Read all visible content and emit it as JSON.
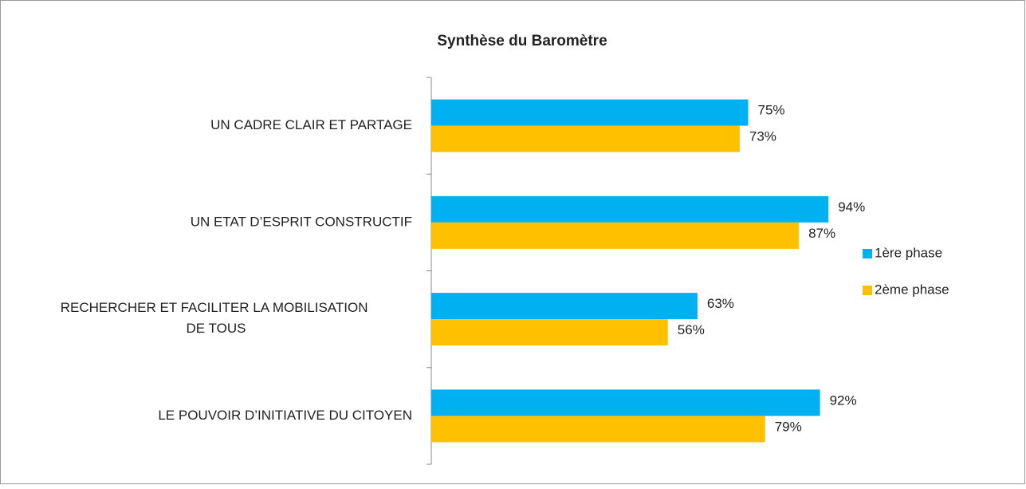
{
  "chart_data": {
    "type": "bar",
    "orientation": "horizontal",
    "title": "Synthèse du Baromètre",
    "categories": [
      "UN CADRE CLAIR ET PARTAGE",
      "UN ETAT D’ESPRIT CONSTRUCTIF",
      "RECHERCHER ET FACILITER LA MOBILISATION DE TOUS",
      "LE POUVOIR D’INITIATIVE DU CITOYEN"
    ],
    "series": [
      {
        "name": "1ère phase",
        "color": "#00b0f0",
        "values": [
          75,
          94,
          63,
          92
        ],
        "value_labels": [
          "75%",
          "94%",
          "63%",
          "92%"
        ]
      },
      {
        "name": "2ème phase",
        "color": "#ffc000",
        "values": [
          73,
          87,
          56,
          79
        ],
        "value_labels": [
          "73%",
          "87%",
          "56%",
          "79%"
        ]
      }
    ],
    "xlim": [
      0,
      100
    ],
    "legend": "right"
  }
}
